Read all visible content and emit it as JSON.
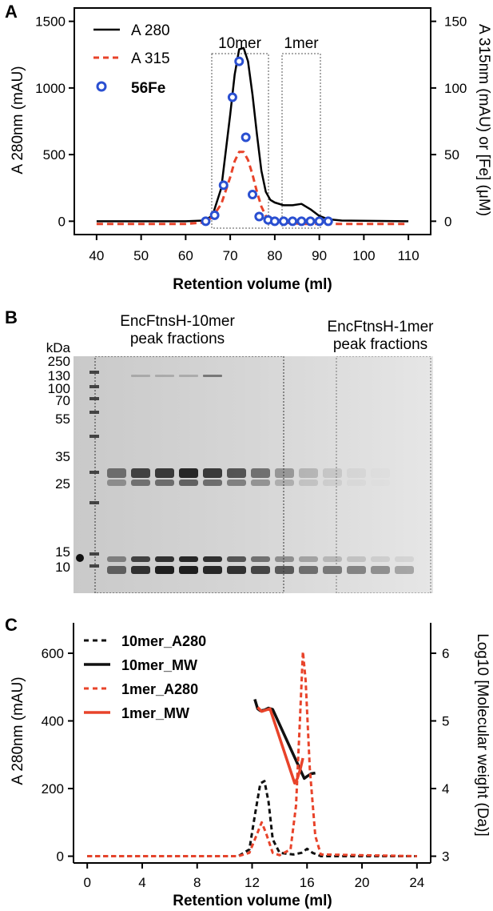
{
  "panels": [
    "A",
    "B",
    "C"
  ],
  "panel_a": {
    "legend": [
      "A 280",
      "A 315",
      "56Fe"
    ],
    "box_labels": [
      "10mer",
      "1mer"
    ],
    "xlabel": "Retention volume (ml)",
    "ylabel_left": "A 280nm (mAU)",
    "ylabel_right": "A 315nm (mAU) or [Fe] (μM)",
    "xticks": [
      "40",
      "50",
      "60",
      "70",
      "80",
      "90",
      "100",
      "110"
    ],
    "yticks_left": [
      "0",
      "500",
      "1000",
      "1500"
    ],
    "yticks_right": [
      "0",
      "50",
      "100",
      "150"
    ]
  },
  "panel_b": {
    "label_10mer_line1": "EncFtnsH-10mer",
    "label_10mer_line2": "peak fractions",
    "label_1mer_line1": "EncFtnsH-1mer",
    "label_1mer_line2": "peak fractions",
    "kda": "kDa",
    "ladder": [
      "250",
      "130",
      "100",
      "70",
      "55",
      "35",
      "25",
      "15",
      "10"
    ]
  },
  "panel_c": {
    "legend": [
      "10mer_A280",
      "10mer_MW",
      "1mer_A280",
      "1mer_MW"
    ],
    "xlabel": "Retention volume (ml)",
    "ylabel_left": "A 280nm (mAU)",
    "ylabel_right": "Log10 [Molecular weight (Da)]",
    "xticks": [
      "0",
      "4",
      "8",
      "12",
      "16",
      "20",
      "24"
    ],
    "yticks_left": [
      "0",
      "200",
      "400",
      "600"
    ],
    "yticks_right": [
      "3",
      "4",
      "5",
      "6"
    ]
  },
  "chart_data": [
    {
      "type": "line",
      "xlabel": "Retention volume (ml)",
      "ylabel": "A 280nm (mAU)",
      "y2label": "A 315nm (mAU) or [Fe] (μM)",
      "xlim": [
        35,
        115
      ],
      "ylim": [
        -100,
        1600
      ],
      "y2lim": [
        -10,
        160
      ],
      "series": [
        {
          "name": "A 280",
          "axis": "left",
          "style": "solid",
          "color": "#000000",
          "x": [
            40,
            60,
            64,
            66,
            68,
            70,
            71,
            72,
            73,
            74,
            75,
            76,
            77,
            78,
            79,
            80,
            82,
            84,
            86,
            88,
            90,
            92,
            95,
            110
          ],
          "y": [
            0,
            0,
            5,
            40,
            250,
            800,
            1100,
            1290,
            1300,
            1200,
            950,
            650,
            380,
            220,
            160,
            140,
            120,
            120,
            130,
            90,
            40,
            15,
            5,
            0
          ]
        },
        {
          "name": "A 315",
          "axis": "right",
          "style": "dashed",
          "color": "#e8432a",
          "x": [
            40,
            60,
            64,
            66,
            68,
            70,
            71,
            72,
            73,
            74,
            75,
            76,
            77,
            78,
            79,
            80,
            82,
            86,
            90,
            95,
            110
          ],
          "y": [
            -2,
            -2,
            -1,
            3,
            13,
            33,
            45,
            52,
            52,
            46,
            35,
            22,
            11,
            4,
            1,
            0,
            -1,
            -2,
            -2,
            -2,
            -2
          ]
        },
        {
          "name": "56Fe",
          "axis": "right",
          "style": "markers",
          "color": "#2a4fd1",
          "x": [
            64.5,
            66.5,
            68.5,
            70.5,
            72,
            73.5,
            75,
            76.5,
            78.5,
            80,
            82,
            84,
            86,
            88,
            90,
            92
          ],
          "y": [
            0,
            4.5,
            27,
            93,
            120,
            63,
            20,
            3.5,
            1,
            0,
            0,
            0,
            0,
            0,
            0,
            0
          ]
        }
      ]
    },
    {
      "type": "line",
      "xlabel": "Retention volume (ml)",
      "ylabel": "A 280nm (mAU)",
      "y2label": "Log10 [Molecular weight (Da)]",
      "xlim": [
        -1,
        25
      ],
      "ylim": [
        -20,
        690
      ],
      "y2lim": [
        2.9,
        6.45
      ],
      "series": [
        {
          "name": "10mer_A280",
          "axis": "left",
          "style": "dashed",
          "color": "#111111",
          "x": [
            0,
            11,
            11.8,
            12.2,
            12.6,
            12.9,
            13.2,
            13.5,
            14,
            15,
            15.6,
            16,
            16.4,
            17,
            24
          ],
          "y": [
            0,
            0,
            20,
            120,
            215,
            222,
            160,
            50,
            10,
            5,
            10,
            22,
            10,
            0,
            0
          ]
        },
        {
          "name": "10mer_MW",
          "axis": "right",
          "style": "solid",
          "color": "#111111",
          "x": [
            12.2,
            12.4,
            12.6,
            12.9,
            13.2,
            13.5,
            15.8,
            16.0,
            16.3,
            16.6
          ],
          "y": [
            5.32,
            5.18,
            5.15,
            5.16,
            5.19,
            5.17,
            4.15,
            4.18,
            4.22,
            4.23
          ]
        },
        {
          "name": "1mer_A280",
          "axis": "left",
          "style": "dashed",
          "color": "#e8432a",
          "x": [
            0,
            11,
            11.8,
            12.3,
            12.7,
            13.0,
            13.5,
            14,
            14.8,
            15.2,
            15.5,
            15.7,
            15.9,
            16.2,
            16.6,
            17,
            24
          ],
          "y": [
            0,
            0,
            10,
            60,
            100,
            70,
            10,
            3,
            20,
            150,
            420,
            605,
            520,
            260,
            60,
            5,
            0
          ]
        },
        {
          "name": "1mer_MW",
          "axis": "right",
          "style": "solid",
          "color": "#e8432a",
          "x": [
            12.4,
            12.7,
            13.0,
            13.3,
            15.1,
            15.3,
            15.5,
            15.7
          ],
          "y": [
            5.2,
            5.14,
            5.16,
            5.18,
            4.08,
            4.15,
            4.28,
            4.45
          ]
        }
      ]
    }
  ]
}
